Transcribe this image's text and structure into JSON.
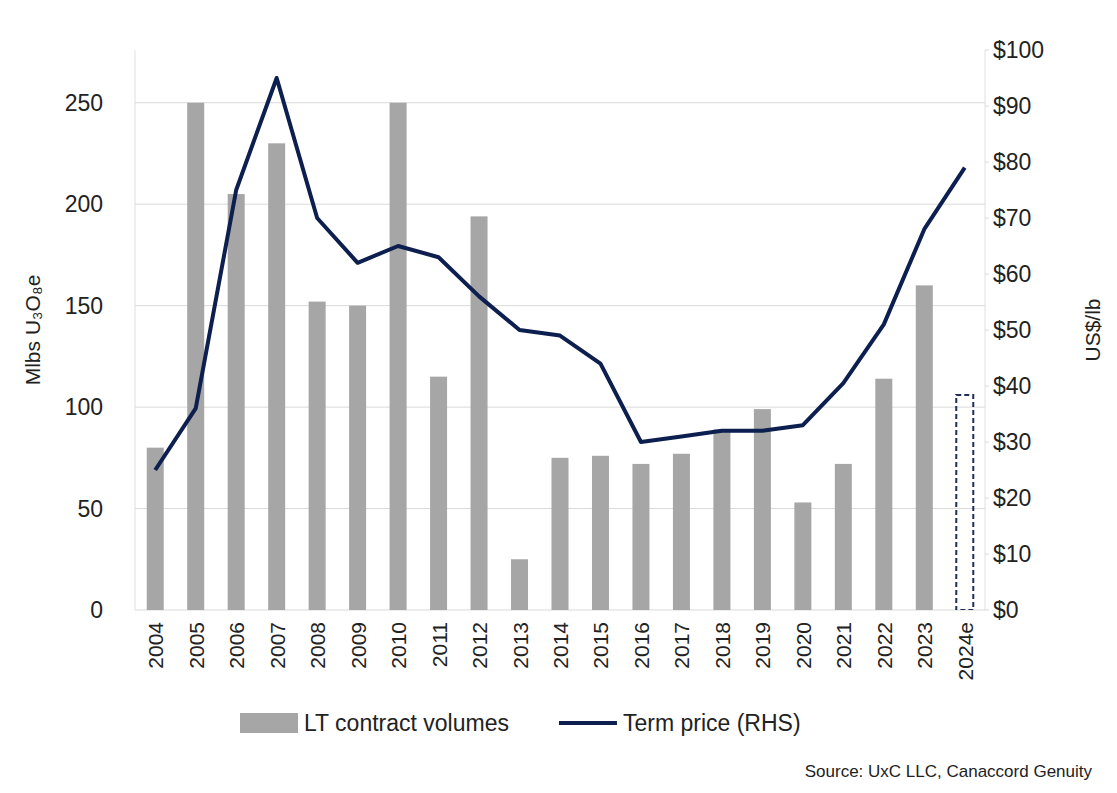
{
  "chart_data": {
    "type": "bar",
    "categories": [
      "2004",
      "2005",
      "2006",
      "2007",
      "2008",
      "2009",
      "2010",
      "2011",
      "2012",
      "2013",
      "2014",
      "2015",
      "2016",
      "2017",
      "2018",
      "2019",
      "2020",
      "2021",
      "2022",
      "2023",
      "2024e"
    ],
    "series": [
      {
        "name": "LT contract volumes",
        "type": "bar",
        "color": "#a6a6a6",
        "values": [
          80,
          250,
          205,
          230,
          152,
          150,
          250,
          115,
          194,
          25,
          75,
          76,
          72,
          77,
          89,
          99,
          53,
          72,
          114,
          160,
          null
        ]
      },
      {
        "type": "bar",
        "color": "#1f2d5a",
        "line_style": "dashed",
        "values": [
          null,
          null,
          null,
          null,
          null,
          null,
          null,
          null,
          null,
          null,
          null,
          null,
          null,
          null,
          null,
          null,
          null,
          null,
          null,
          null,
          106
        ]
      },
      {
        "name": "Term price (RHS)",
        "type": "line",
        "color": "#0d1f4f",
        "axis": "y2",
        "values": [
          25,
          36,
          75,
          95,
          70,
          62,
          65,
          63,
          56,
          50,
          49,
          44,
          30,
          31,
          32,
          32,
          33,
          40.5,
          51,
          68,
          79
        ]
      }
    ],
    "ylabel": "Mlbs U₃O₈e",
    "y2label": "US$/lb",
    "ylim": [
      0,
      276
    ],
    "yticks": [
      0,
      50,
      100,
      150,
      200,
      250
    ],
    "y2lim": [
      0,
      100
    ],
    "y2ticks": [
      {
        "value": 0,
        "label": "$0"
      },
      {
        "value": 10,
        "label": "$10"
      },
      {
        "value": 20,
        "label": "$20"
      },
      {
        "value": 30,
        "label": "$30"
      },
      {
        "value": 40,
        "label": "$40"
      },
      {
        "value": 50,
        "label": "$50"
      },
      {
        "value": 60,
        "label": "$60"
      },
      {
        "value": 70,
        "label": "$70"
      },
      {
        "value": 80,
        "label": "$80"
      },
      {
        "value": 90,
        "label": "$90"
      },
      {
        "value": 100,
        "label": "$100"
      }
    ],
    "grid": true,
    "legend": "bottom",
    "source": "Source: UxC LLC, Canaccord Genuity"
  }
}
